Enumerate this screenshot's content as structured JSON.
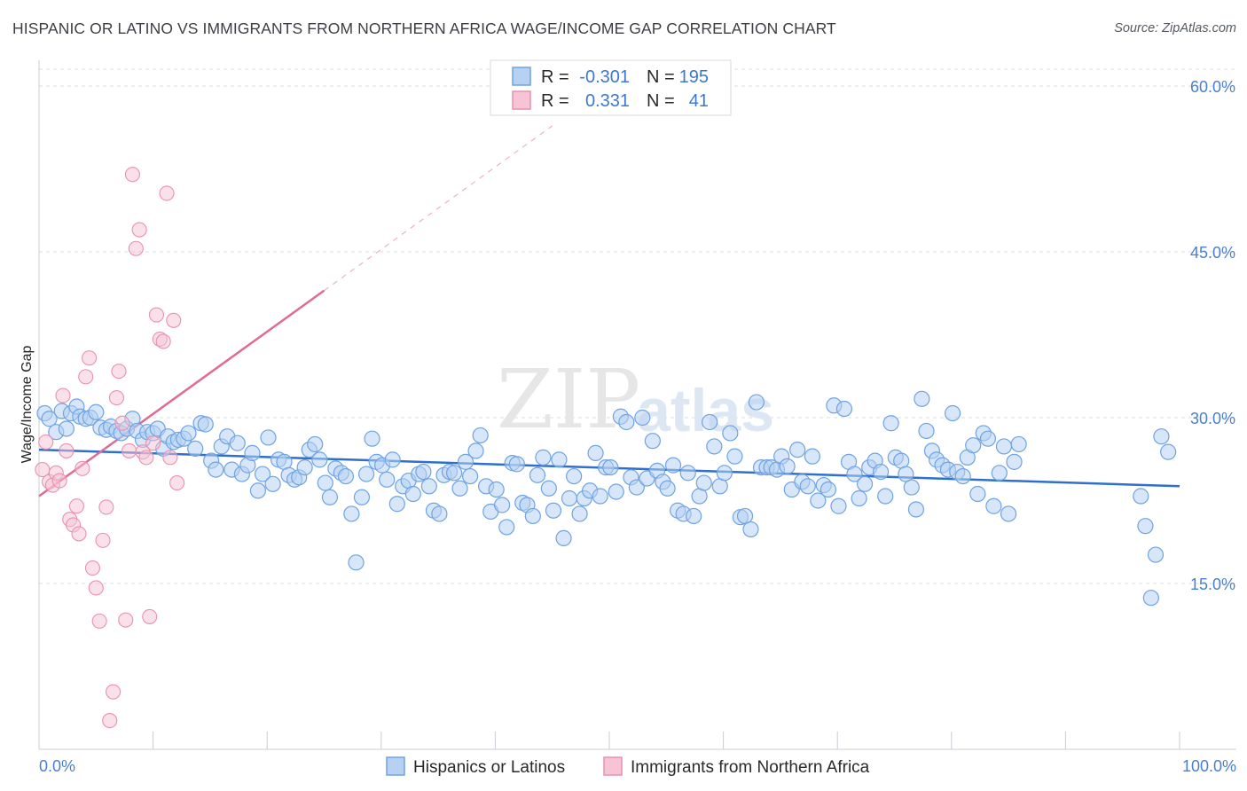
{
  "title": "HISPANIC OR LATINO VS IMMIGRANTS FROM NORTHERN AFRICA WAGE/INCOME GAP CORRELATION CHART",
  "source": "Source: ZipAtlas.com",
  "watermark": {
    "zip": "ZIP",
    "atlas": "atlas"
  },
  "colors": {
    "blue": "#6fa3e3",
    "blue_fill": "#b7d1f3",
    "blue_line": "#2f6fcd",
    "pink": "#e991ad",
    "pink_fill": "#f6c4d4",
    "pink_line": "#e06b95",
    "axis_text": "#4a7fcf",
    "grid": "#d9dde3"
  },
  "legend": {
    "rows": [
      {
        "r_label": "R =",
        "r_value": "-0.301",
        "n_label": "N =",
        "n_value": "195"
      },
      {
        "r_label": "R =",
        "r_value": "0.331",
        "n_label": "N =",
        "n_value": "41"
      }
    ]
  },
  "bottom_legend": [
    "Hispanics or Latinos",
    "Immigrants from Northern Africa"
  ],
  "chart_data": {
    "type": "scatter",
    "title": "HISPANIC OR LATINO VS IMMIGRANTS FROM NORTHERN AFRICA WAGE/INCOME GAP CORRELATION CHART",
    "xlabel": "",
    "ylabel": "Wage/Income Gap",
    "xlim": [
      0,
      100
    ],
    "ylim": [
      0,
      60
    ],
    "x_tick_labels": [
      "0.0%",
      "100.0%"
    ],
    "y_ticks": [
      15,
      30,
      45,
      60
    ],
    "y_tick_labels": [
      "15.0%",
      "30.0%",
      "45.0%",
      "60.0%"
    ],
    "grid": true,
    "legend_position": "top-center",
    "series": [
      {
        "name": "Hispanics or Latinos",
        "color": "#6fa3e3",
        "trend": {
          "x0": 0,
          "y0": 27.1,
          "x1": 100,
          "y1": 23.8
        },
        "points": [
          [
            0.5,
            30.4
          ],
          [
            0.9,
            29.9
          ],
          [
            1.5,
            28.7
          ],
          [
            2.0,
            30.6
          ],
          [
            2.4,
            29.0
          ],
          [
            2.8,
            30.4
          ],
          [
            3.3,
            31.0
          ],
          [
            3.6,
            30.1
          ],
          [
            4.1,
            29.9
          ],
          [
            4.5,
            30.0
          ],
          [
            5.0,
            30.5
          ],
          [
            5.4,
            29.1
          ],
          [
            5.9,
            28.9
          ],
          [
            6.3,
            29.2
          ],
          [
            6.8,
            28.8
          ],
          [
            7.2,
            28.6
          ],
          [
            7.7,
            29.0
          ],
          [
            8.2,
            29.9
          ],
          [
            8.6,
            28.8
          ],
          [
            9.1,
            28.0
          ],
          [
            9.5,
            28.7
          ],
          [
            10.0,
            28.6
          ],
          [
            10.4,
            29.0
          ],
          [
            10.9,
            27.2
          ],
          [
            11.3,
            28.3
          ],
          [
            11.8,
            27.8
          ],
          [
            12.2,
            28.0
          ],
          [
            12.7,
            28.1
          ],
          [
            13.1,
            28.6
          ],
          [
            13.7,
            27.2
          ],
          [
            14.2,
            29.5
          ],
          [
            14.6,
            29.4
          ],
          [
            15.1,
            26.1
          ],
          [
            15.5,
            25.3
          ],
          [
            16.0,
            27.4
          ],
          [
            16.5,
            28.3
          ],
          [
            16.9,
            25.3
          ],
          [
            17.4,
            27.7
          ],
          [
            17.8,
            24.9
          ],
          [
            18.3,
            25.7
          ],
          [
            18.7,
            26.8
          ],
          [
            19.2,
            23.4
          ],
          [
            19.6,
            24.9
          ],
          [
            20.1,
            28.2
          ],
          [
            20.5,
            24.0
          ],
          [
            21.0,
            26.2
          ],
          [
            21.5,
            26.0
          ],
          [
            21.9,
            24.8
          ],
          [
            22.4,
            24.4
          ],
          [
            22.8,
            24.6
          ],
          [
            23.3,
            25.5
          ],
          [
            23.7,
            27.1
          ],
          [
            24.2,
            27.6
          ],
          [
            24.6,
            26.2
          ],
          [
            25.1,
            24.1
          ],
          [
            25.5,
            22.8
          ],
          [
            26.0,
            25.4
          ],
          [
            26.5,
            25.0
          ],
          [
            26.9,
            24.7
          ],
          [
            27.4,
            21.3
          ],
          [
            27.8,
            16.9
          ],
          [
            28.3,
            22.8
          ],
          [
            28.7,
            24.9
          ],
          [
            29.2,
            28.1
          ],
          [
            29.6,
            26.0
          ],
          [
            30.1,
            25.7
          ],
          [
            30.5,
            24.4
          ],
          [
            31.0,
            26.2
          ],
          [
            31.4,
            22.2
          ],
          [
            31.9,
            23.8
          ],
          [
            32.4,
            24.3
          ],
          [
            32.8,
            23.1
          ],
          [
            33.3,
            24.9
          ],
          [
            33.7,
            25.1
          ],
          [
            34.2,
            23.8
          ],
          [
            34.6,
            21.6
          ],
          [
            35.1,
            21.3
          ],
          [
            35.5,
            24.8
          ],
          [
            36.0,
            25.1
          ],
          [
            36.4,
            25.0
          ],
          [
            36.9,
            23.6
          ],
          [
            37.4,
            26.0
          ],
          [
            37.8,
            24.7
          ],
          [
            38.3,
            27.0
          ],
          [
            38.7,
            28.4
          ],
          [
            39.2,
            23.8
          ],
          [
            39.6,
            21.5
          ],
          [
            40.1,
            23.5
          ],
          [
            40.6,
            22.1
          ],
          [
            41.0,
            20.1
          ],
          [
            41.5,
            25.9
          ],
          [
            41.9,
            25.8
          ],
          [
            42.4,
            22.3
          ],
          [
            42.8,
            22.1
          ],
          [
            43.3,
            21.1
          ],
          [
            43.7,
            24.8
          ],
          [
            44.2,
            26.4
          ],
          [
            44.7,
            23.6
          ],
          [
            45.1,
            21.6
          ],
          [
            45.6,
            26.2
          ],
          [
            46.0,
            19.1
          ],
          [
            46.5,
            22.7
          ],
          [
            46.9,
            24.7
          ],
          [
            47.4,
            21.3
          ],
          [
            47.8,
            22.7
          ],
          [
            48.3,
            23.4
          ],
          [
            48.8,
            26.8
          ],
          [
            49.2,
            22.9
          ],
          [
            49.7,
            25.5
          ],
          [
            50.1,
            25.5
          ],
          [
            50.6,
            23.3
          ],
          [
            51.0,
            30.1
          ],
          [
            51.5,
            29.6
          ],
          [
            51.9,
            24.6
          ],
          [
            52.4,
            23.7
          ],
          [
            52.9,
            30.0
          ],
          [
            53.3,
            24.5
          ],
          [
            53.8,
            27.9
          ],
          [
            54.2,
            25.2
          ],
          [
            54.7,
            24.2
          ],
          [
            55.1,
            23.6
          ],
          [
            55.6,
            25.7
          ],
          [
            56.0,
            21.6
          ],
          [
            56.5,
            21.3
          ],
          [
            56.9,
            25.0
          ],
          [
            57.4,
            21.1
          ],
          [
            57.9,
            22.9
          ],
          [
            58.3,
            24.1
          ],
          [
            58.8,
            29.6
          ],
          [
            59.2,
            27.4
          ],
          [
            59.7,
            23.8
          ],
          [
            60.1,
            25.0
          ],
          [
            60.6,
            28.6
          ],
          [
            61.0,
            26.5
          ],
          [
            61.5,
            21.0
          ],
          [
            61.9,
            21.1
          ],
          [
            62.4,
            19.9
          ],
          [
            62.9,
            31.4
          ],
          [
            63.3,
            25.5
          ],
          [
            63.8,
            25.5
          ],
          [
            64.2,
            25.5
          ],
          [
            64.7,
            25.3
          ],
          [
            65.1,
            26.5
          ],
          [
            65.6,
            25.6
          ],
          [
            66.0,
            23.5
          ],
          [
            66.5,
            27.1
          ],
          [
            66.9,
            24.2
          ],
          [
            67.4,
            23.8
          ],
          [
            67.8,
            26.5
          ],
          [
            68.3,
            22.5
          ],
          [
            68.8,
            23.9
          ],
          [
            69.2,
            23.5
          ],
          [
            69.7,
            31.1
          ],
          [
            70.1,
            22.0
          ],
          [
            70.6,
            30.8
          ],
          [
            71.0,
            26.0
          ],
          [
            71.5,
            24.9
          ],
          [
            71.9,
            22.7
          ],
          [
            72.4,
            24.0
          ],
          [
            72.8,
            25.5
          ],
          [
            73.3,
            26.1
          ],
          [
            73.8,
            25.1
          ],
          [
            74.2,
            22.9
          ],
          [
            74.7,
            29.5
          ],
          [
            75.1,
            26.4
          ],
          [
            75.6,
            26.1
          ],
          [
            76.0,
            24.9
          ],
          [
            76.5,
            23.7
          ],
          [
            76.9,
            21.7
          ],
          [
            77.4,
            31.7
          ],
          [
            77.8,
            28.8
          ],
          [
            78.3,
            27.0
          ],
          [
            78.7,
            26.2
          ],
          [
            79.2,
            25.7
          ],
          [
            79.7,
            25.3
          ],
          [
            80.1,
            30.4
          ],
          [
            80.5,
            25.1
          ],
          [
            81.0,
            24.7
          ],
          [
            81.4,
            26.4
          ],
          [
            81.9,
            27.5
          ],
          [
            82.3,
            23.1
          ],
          [
            82.8,
            28.6
          ],
          [
            83.2,
            28.1
          ],
          [
            83.7,
            22.0
          ],
          [
            84.2,
            25.0
          ],
          [
            84.6,
            27.4
          ],
          [
            85.0,
            21.3
          ],
          [
            85.5,
            26.0
          ],
          [
            85.9,
            27.6
          ],
          [
            96.6,
            22.9
          ],
          [
            97.0,
            20.2
          ],
          [
            97.5,
            13.7
          ],
          [
            97.9,
            17.6
          ],
          [
            98.4,
            28.3
          ],
          [
            99.0,
            26.9
          ]
        ]
      },
      {
        "name": "Immigrants from Northern Africa",
        "color": "#e991ad",
        "trend": {
          "x0": 0,
          "y0": 22.9,
          "x1": 25,
          "y1": 41.5,
          "dash_to_x": 45,
          "dash_to_y": 56.4
        },
        "points": [
          [
            0.3,
            25.3
          ],
          [
            0.6,
            27.8
          ],
          [
            0.9,
            24.2
          ],
          [
            1.2,
            23.9
          ],
          [
            1.5,
            25.0
          ],
          [
            1.8,
            24.3
          ],
          [
            2.1,
            32.0
          ],
          [
            2.4,
            27.0
          ],
          [
            2.7,
            20.8
          ],
          [
            3.0,
            20.3
          ],
          [
            3.3,
            22.0
          ],
          [
            3.5,
            19.5
          ],
          [
            3.8,
            25.4
          ],
          [
            4.1,
            33.7
          ],
          [
            4.4,
            35.4
          ],
          [
            4.7,
            16.4
          ],
          [
            5.0,
            14.6
          ],
          [
            5.3,
            11.6
          ],
          [
            5.6,
            18.9
          ],
          [
            5.9,
            21.9
          ],
          [
            6.2,
            2.6
          ],
          [
            6.5,
            5.2
          ],
          [
            6.8,
            31.8
          ],
          [
            7.0,
            34.2
          ],
          [
            7.3,
            29.5
          ],
          [
            7.6,
            11.7
          ],
          [
            7.9,
            27.0
          ],
          [
            8.2,
            52.0
          ],
          [
            8.5,
            45.3
          ],
          [
            8.8,
            47.0
          ],
          [
            9.1,
            26.9
          ],
          [
            9.4,
            26.4
          ],
          [
            9.7,
            12.0
          ],
          [
            10.0,
            27.7
          ],
          [
            10.3,
            39.3
          ],
          [
            10.6,
            37.1
          ],
          [
            10.9,
            36.9
          ],
          [
            11.2,
            50.3
          ],
          [
            11.5,
            26.4
          ],
          [
            11.8,
            38.8
          ],
          [
            12.1,
            24.1
          ]
        ]
      }
    ]
  }
}
